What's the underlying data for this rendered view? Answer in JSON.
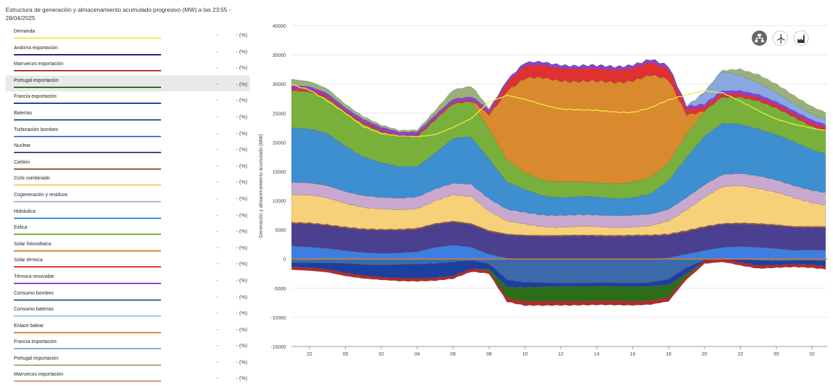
{
  "header": {
    "title": "Estructura de generación y almacenamiento acumulado progresivo (MW) a las 23:55 - 28/04/2025"
  },
  "legend": [
    {
      "label": "Demanda",
      "color": "#f0ee37",
      "value": "-",
      "pct": "- (%)"
    },
    {
      "label": "Andorra exportación",
      "color": "#1c1c7a",
      "value": "-",
      "pct": "- (%)"
    },
    {
      "label": "Marruecos exportación",
      "color": "#b22b2b",
      "value": "-",
      "pct": "- (%)"
    },
    {
      "label": "Portugal exportación",
      "color": "#2c6d1a",
      "value": "-",
      "pct": "- (%)"
    },
    {
      "label": "Francia exportación",
      "color": "#1d3fa0",
      "value": "-",
      "pct": "- (%)"
    },
    {
      "label": "Baterías",
      "color": "#2f5a9b",
      "value": "-",
      "pct": "- (%)"
    },
    {
      "label": "Turbinación bombeo",
      "color": "#3d7fe0",
      "value": "-",
      "pct": "- (%)"
    },
    {
      "label": "Nuclear",
      "color": "#4b3f8f",
      "value": "-",
      "pct": "- (%)"
    },
    {
      "label": "Carbón",
      "color": "#9b5a3a",
      "value": "-",
      "pct": "- (%)"
    },
    {
      "label": "Ciclo combinado",
      "color": "#f7d07a",
      "value": "-",
      "pct": "- (%)"
    },
    {
      "label": "Cogeneración y residuos",
      "color": "#c9a8d0",
      "value": "-",
      "pct": "- (%)"
    },
    {
      "label": "Hidráulica",
      "color": "#3d8fcf",
      "value": "-",
      "pct": "- (%)"
    },
    {
      "label": "Eólica",
      "color": "#79b03c",
      "value": "-",
      "pct": "- (%)"
    },
    {
      "label": "Solar fotovoltaica",
      "color": "#d98a2f",
      "value": "-",
      "pct": "- (%)"
    },
    {
      "label": "Solar térmica",
      "color": "#e03030",
      "value": "-",
      "pct": "- (%)"
    },
    {
      "label": "Térmica renovable",
      "color": "#8a3fe0",
      "value": "-",
      "pct": "- (%)"
    },
    {
      "label": "Consumo bombeo",
      "color": "#3a6aa8",
      "value": "-",
      "pct": "- (%)"
    },
    {
      "label": "Consumo baterías",
      "color": "#9fc6e0",
      "value": "-",
      "pct": "- (%)"
    },
    {
      "label": "Enlace balear",
      "color": "#f07a3a",
      "value": "-",
      "pct": "- (%)"
    },
    {
      "label": "Francia importación",
      "color": "#8aa8e0",
      "value": "-",
      "pct": "- (%)"
    },
    {
      "label": "Portugal importación",
      "color": "#9ab07a",
      "value": "-",
      "pct": "- (%)"
    },
    {
      "label": "Marruecos importación",
      "color": "#e08a8a",
      "value": "-",
      "pct": "- (%)"
    }
  ],
  "highlighted_legend_index": 3,
  "toolbar": {
    "icons": [
      "network-icon",
      "wind-turbine-icon",
      "factory-icon"
    ]
  },
  "chart_data": {
    "type": "area",
    "title": "Estructura de generación y almacenamiento acumulado progresivo (MW) a las 23:55 - 28/04/2025",
    "ylabel": "Generación y almacenamiento acumulado (MW)",
    "xlabel": "",
    "ylim": [
      -15000,
      40000
    ],
    "yticks": [
      -15000,
      -10000,
      -5000,
      0,
      5000,
      10000,
      15000,
      20000,
      25000,
      30000,
      35000,
      40000
    ],
    "x_hours": [
      21,
      22,
      23,
      24,
      25,
      26,
      27,
      28,
      29,
      30,
      31,
      32,
      33,
      34,
      35,
      36,
      37,
      38,
      39,
      40,
      41,
      42,
      43,
      44,
      45,
      46,
      47,
      48,
      49,
      50,
      51
    ],
    "xticks": [
      {
        "hour": 22,
        "label": "22"
      },
      {
        "hour": 24,
        "label": "00"
      },
      {
        "hour": 26,
        "label": "02"
      },
      {
        "hour": 28,
        "label": "04"
      },
      {
        "hour": 30,
        "label": "06"
      },
      {
        "hour": 32,
        "label": "08"
      },
      {
        "hour": 34,
        "label": "10"
      },
      {
        "hour": 36,
        "label": "12"
      },
      {
        "hour": 38,
        "label": "14"
      },
      {
        "hour": 40,
        "label": "16"
      },
      {
        "hour": 42,
        "label": "18"
      },
      {
        "hour": 44,
        "label": "20"
      },
      {
        "hour": 46,
        "label": "22"
      },
      {
        "hour": 48,
        "label": "00"
      },
      {
        "hour": 50,
        "label": "02"
      }
    ],
    "x_min": 21.0,
    "x_max": 50.85,
    "positive_series": [
      {
        "name": "Turbinación bombeo",
        "color": "#3d7fe0",
        "values": [
          2200,
          2100,
          1800,
          1400,
          1100,
          1000,
          1000,
          1200,
          2000,
          2400,
          2000,
          800,
          200,
          0,
          0,
          0,
          0,
          0,
          0,
          0,
          0,
          200,
          800,
          1500,
          2000,
          2100,
          2000,
          1800,
          1500,
          1500,
          1500
        ]
      },
      {
        "name": "Nuclear",
        "color": "#4b3f8f",
        "values": [
          3900,
          3900,
          3900,
          3900,
          3900,
          3900,
          3900,
          3900,
          3900,
          3900,
          3900,
          3900,
          3900,
          3900,
          3900,
          3900,
          3900,
          3900,
          3900,
          3900,
          3900,
          3900,
          3900,
          3900,
          3900,
          3900,
          3900,
          3900,
          3900,
          3900,
          3900
        ]
      },
      {
        "name": "Carbón",
        "color": "#9b5a3a",
        "values": [
          200,
          200,
          200,
          200,
          200,
          200,
          200,
          200,
          200,
          200,
          200,
          200,
          200,
          200,
          200,
          200,
          200,
          200,
          200,
          200,
          200,
          200,
          200,
          200,
          200,
          200,
          200,
          200,
          200,
          200,
          200
        ]
      },
      {
        "name": "Ciclo combinado",
        "color": "#f7d07a",
        "values": [
          4800,
          4700,
          4500,
          4100,
          3700,
          3400,
          3300,
          3400,
          3900,
          4400,
          4600,
          3400,
          2200,
          1800,
          1500,
          1400,
          1400,
          1400,
          1400,
          1400,
          1500,
          2200,
          3600,
          5000,
          6200,
          6400,
          6100,
          5500,
          4800,
          4100,
          3600
        ]
      },
      {
        "name": "Cogeneración y residuos",
        "color": "#c9a8d0",
        "values": [
          2100,
          2100,
          2100,
          2000,
          2000,
          2000,
          2000,
          2000,
          2000,
          2000,
          2100,
          2100,
          2000,
          2000,
          2000,
          2000,
          2000,
          2000,
          2000,
          2000,
          2000,
          2000,
          2100,
          2100,
          2100,
          2100,
          2100,
          2100,
          2100,
          2100,
          2100
        ]
      },
      {
        "name": "Hidráulica",
        "color": "#3d8fcf",
        "values": [
          9500,
          9300,
          8800,
          7800,
          6800,
          5900,
          5300,
          5300,
          6300,
          7600,
          8100,
          7000,
          4700,
          3800,
          3300,
          3200,
          3100,
          3000,
          3000,
          3100,
          3400,
          4800,
          7000,
          8400,
          8700,
          8400,
          8200,
          7800,
          7400,
          7000,
          6700
        ]
      },
      {
        "name": "Eólica",
        "color": "#79b03c",
        "values": [
          6300,
          6300,
          6100,
          5800,
          5500,
          5300,
          5200,
          5100,
          5600,
          6000,
          6100,
          5000,
          3700,
          3000,
          2700,
          2600,
          2500,
          2500,
          2500,
          2600,
          2800,
          3200,
          3800,
          4300,
          4500,
          4700,
          4700,
          4500,
          4300,
          4000,
          3800
        ]
      },
      {
        "name": "Solar fotovoltaica",
        "color": "#d98a2f",
        "values": [
          0,
          0,
          0,
          0,
          0,
          0,
          0,
          0,
          0,
          0,
          0,
          2500,
          12000,
          16000,
          17400,
          17500,
          17300,
          17200,
          17300,
          17600,
          17600,
          14000,
          3500,
          200,
          0,
          0,
          0,
          0,
          0,
          0,
          0
        ]
      },
      {
        "name": "Solar térmica",
        "color": "#e03030",
        "values": [
          400,
          400,
          400,
          300,
          300,
          300,
          300,
          300,
          300,
          300,
          300,
          400,
          1400,
          2200,
          2200,
          2200,
          2200,
          2200,
          2200,
          2200,
          2200,
          1800,
          1000,
          700,
          600,
          600,
          600,
          600,
          600,
          600,
          600
        ]
      },
      {
        "name": "Térmica renovable",
        "color": "#8a3fe0",
        "values": [
          500,
          500,
          500,
          500,
          500,
          500,
          500,
          500,
          500,
          500,
          500,
          500,
          500,
          500,
          500,
          500,
          500,
          500,
          500,
          500,
          500,
          500,
          500,
          500,
          500,
          500,
          500,
          500,
          500,
          500,
          500
        ]
      },
      {
        "name": "Francia importación",
        "color": "#8aa8e0",
        "values": [
          0,
          0,
          0,
          0,
          0,
          0,
          0,
          0,
          0,
          0,
          0,
          0,
          0,
          0,
          0,
          0,
          0,
          0,
          0,
          0,
          0,
          0,
          0,
          2000,
          3200,
          2700,
          2000,
          1500,
          1200,
          1000,
          800
        ]
      },
      {
        "name": "Portugal importación",
        "color": "#9ab07a",
        "values": [
          1000,
          900,
          800,
          600,
          500,
          400,
          300,
          300,
          800,
          1600,
          1800,
          200,
          0,
          0,
          0,
          0,
          0,
          0,
          0,
          0,
          0,
          0,
          0,
          0,
          300,
          1000,
          1400,
          1500,
          1400,
          1300,
          1200
        ]
      }
    ],
    "negative_series": [
      {
        "name": "Consumo bombeo",
        "color": "#3a6aa8",
        "values": [
          -600,
          -600,
          -700,
          -800,
          -900,
          -1000,
          -1000,
          -900,
          -700,
          -500,
          -300,
          -800,
          -3500,
          -4000,
          -4100,
          -4100,
          -4100,
          -4100,
          -4100,
          -4100,
          -4000,
          -3500,
          -1500,
          -100,
          0,
          -100,
          -200,
          -300,
          -300,
          -300,
          -300
        ]
      },
      {
        "name": "Francia exportación",
        "color": "#1d3fa0",
        "values": [
          -700,
          -900,
          -1100,
          -1600,
          -1900,
          -2100,
          -2300,
          -2400,
          -2500,
          -2400,
          -1400,
          -900,
          -1300,
          -900,
          -700,
          -600,
          -600,
          -600,
          -600,
          -600,
          -700,
          -1000,
          -1000,
          -200,
          0,
          -500,
          -900,
          -700,
          -600,
          -700,
          -1000
        ]
      },
      {
        "name": "Portugal exportación",
        "color": "#2c6d1a",
        "values": [
          0,
          0,
          0,
          0,
          0,
          0,
          0,
          0,
          0,
          0,
          0,
          -300,
          -1800,
          -2400,
          -2500,
          -2500,
          -2500,
          -2500,
          -2500,
          -2500,
          -2400,
          -2100,
          -500,
          0,
          0,
          0,
          0,
          0,
          0,
          0,
          0
        ]
      },
      {
        "name": "Marruecos exportación",
        "color": "#b22b2b",
        "values": [
          -500,
          -500,
          -500,
          -500,
          -500,
          -500,
          -500,
          -500,
          -500,
          -500,
          -500,
          -500,
          -700,
          -700,
          -700,
          -700,
          -700,
          -700,
          -700,
          -700,
          -700,
          -700,
          -500,
          -500,
          -500,
          -500,
          -500,
          -500,
          -500,
          -500,
          -500
        ]
      }
    ],
    "demand": {
      "name": "Demanda",
      "color": "#f0ee37",
      "values": [
        30000,
        29000,
        27000,
        25000,
        22800,
        21500,
        21000,
        21000,
        21400,
        22500,
        24000,
        27000,
        28100,
        27300,
        26400,
        25800,
        25600,
        25400,
        25200,
        25200,
        25900,
        27200,
        28200,
        28900,
        28400,
        27000,
        25500,
        24000,
        23000,
        22400,
        22000
      ]
    }
  }
}
